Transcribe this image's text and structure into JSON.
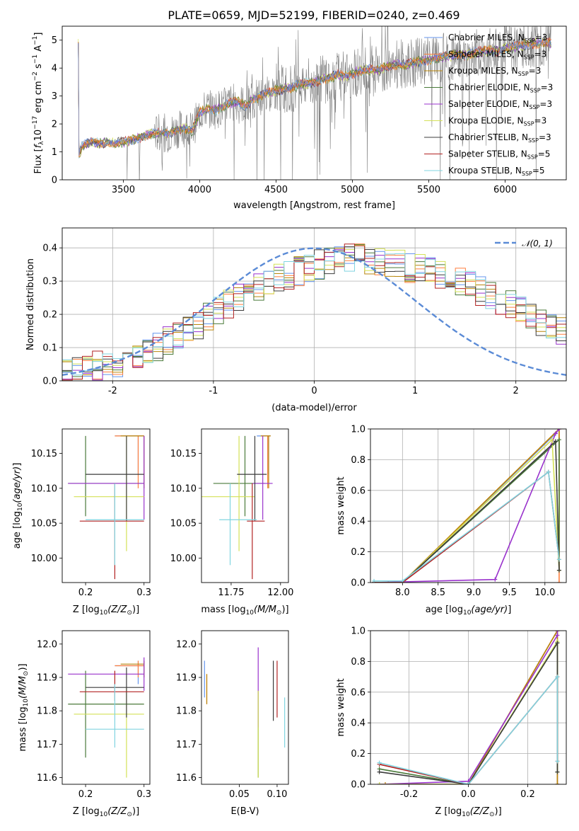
{
  "title": "PLATE=0659, MJD=52199, FIBERID=0240, z=0.469",
  "colors": {
    "chabrier_miles": "#6495ed",
    "salpeter_miles": "#ff7f3f",
    "kroupa_miles": "#b8860b",
    "chabrier_elodie": "#4a7a3a",
    "salpeter_elodie": "#9932cc",
    "kroupa_elodie": "#d4e157",
    "chabrier_stelib": "#3c3c3c",
    "salpeter_stelib": "#b22222",
    "kroupa_stelib": "#80d4e0",
    "data_grey": "#808080",
    "gauss": "#5b8bd6",
    "grid": "#b0b0b0"
  },
  "chart_data": [
    {
      "id": "spectrum",
      "type": "line",
      "title": "PLATE=0659, MJD=52199, FIBERID=0240, z=0.469",
      "xlabel": "wavelength [Angstrom, rest frame]",
      "ylabel_parts": [
        "Flux [",
        "f",
        "λ",
        "10",
        "−17",
        " erg cm",
        "−2",
        " s",
        "−1",
        " A",
        "−1",
        "]"
      ],
      "xlim": [
        3100,
        6400
      ],
      "ylim": [
        0,
        5.5
      ],
      "xticks": [
        3500,
        4000,
        4500,
        5000,
        5500,
        6000
      ],
      "yticks": [
        0,
        1,
        2,
        3,
        4,
        5
      ],
      "grid": false,
      "legend_position": "right",
      "legend": [
        {
          "label": "Chabrier MILES, N",
          "sub": "SSP",
          "suffix": "=3",
          "color_key": "chabrier_miles"
        },
        {
          "label": "Salpeter MILES, N",
          "sub": "SSP",
          "suffix": "=3",
          "color_key": "salpeter_miles"
        },
        {
          "label": "Kroupa MILES, N",
          "sub": "SSP",
          "suffix": "=3",
          "color_key": "kroupa_miles"
        },
        {
          "label": "Chabrier ELODIE, N",
          "sub": "SSP",
          "suffix": "=3",
          "color_key": "chabrier_elodie"
        },
        {
          "label": "Salpeter ELODIE, N",
          "sub": "SSP",
          "suffix": "=3",
          "color_key": "salpeter_elodie"
        },
        {
          "label": "Kroupa ELODIE, N",
          "sub": "SSP",
          "suffix": "=3",
          "color_key": "kroupa_elodie"
        },
        {
          "label": "Chabrier STELIB, N",
          "sub": "SSP",
          "suffix": "=3",
          "color_key": "chabrier_stelib"
        },
        {
          "label": "Salpeter STELIB, N",
          "sub": "SSP",
          "suffix": "=5",
          "color_key": "salpeter_stelib"
        },
        {
          "label": "Kroupa STELIB, N",
          "sub": "SSP",
          "suffix": "=5",
          "color_key": "kroupa_stelib"
        }
      ],
      "model_continuum": {
        "x": [
          3210,
          3230,
          3260,
          3300,
          3350,
          3400,
          3450,
          3500,
          3550,
          3600,
          3650,
          3700,
          3750,
          3800,
          3850,
          3900,
          3950,
          4000,
          4050,
          4100,
          4150,
          4200,
          4250,
          4300,
          4350,
          4400,
          4450,
          4500,
          4550,
          4600,
          4650,
          4700,
          4750,
          4800,
          4850,
          4900,
          4950,
          5000,
          5050,
          5100,
          5150,
          5200,
          5250,
          5300,
          5350,
          5400,
          5450,
          5500,
          5550,
          5600,
          5650,
          5700,
          5750,
          5800,
          5850,
          5900,
          5950,
          6000,
          6050,
          6100,
          6150,
          6200
        ],
        "y": [
          0.9,
          1.2,
          1.3,
          1.35,
          1.3,
          1.35,
          1.3,
          1.35,
          1.4,
          1.5,
          1.6,
          1.65,
          1.7,
          1.65,
          1.8,
          1.85,
          1.75,
          2.4,
          2.55,
          2.5,
          2.6,
          2.75,
          2.8,
          2.65,
          2.9,
          3.0,
          3.1,
          3.2,
          3.25,
          3.3,
          3.4,
          3.45,
          3.5,
          3.6,
          3.65,
          3.75,
          3.7,
          3.8,
          3.9,
          3.95,
          3.9,
          4.0,
          4.1,
          4.15,
          4.1,
          4.2,
          4.25,
          4.3,
          4.35,
          4.4,
          4.45,
          4.5,
          4.45,
          4.55,
          4.6,
          4.65,
          4.6,
          4.7,
          4.75,
          4.8,
          4.85,
          4.9
        ]
      }
    },
    {
      "id": "residuals",
      "type": "histogram",
      "xlabel": "(data-model)/error",
      "ylabel": "Normed distribution",
      "xlim": [
        -2.5,
        2.5
      ],
      "ylim": [
        0,
        0.46
      ],
      "xticks": [
        -2,
        -1,
        0,
        1,
        2
      ],
      "yticks": [
        0.0,
        0.1,
        0.2,
        0.3,
        0.4
      ],
      "grid": true,
      "legend_label": "𝒩(0, 1)",
      "legend_position": "top-right",
      "bin_edges_start": -2.5,
      "bin_width": 0.1,
      "base_values": [
        0.03,
        0.035,
        0.04,
        0.045,
        0.05,
        0.055,
        0.06,
        0.07,
        0.09,
        0.1,
        0.12,
        0.13,
        0.15,
        0.17,
        0.19,
        0.21,
        0.23,
        0.25,
        0.27,
        0.28,
        0.3,
        0.31,
        0.32,
        0.33,
        0.34,
        0.35,
        0.36,
        0.36,
        0.37,
        0.37,
        0.36,
        0.36,
        0.35,
        0.35,
        0.34,
        0.34,
        0.33,
        0.32,
        0.31,
        0.3,
        0.29,
        0.27,
        0.26,
        0.24,
        0.23,
        0.21,
        0.2,
        0.18,
        0.17,
        0.15
      ]
    },
    {
      "id": "age_vs_Z",
      "type": "errorbar",
      "xlabel_main": "Z [log",
      "xlabel_sub": "10",
      "xlabel_rest": "(Z/Z",
      "xlabel_end": ")]",
      "ylabel": "age  [log",
      "xlim": [
        0.16,
        0.31
      ],
      "ylim": [
        9.965,
        10.185
      ],
      "xticks": [
        0.2,
        0.3
      ],
      "yticks": [
        10.0,
        10.05,
        10.1,
        10.15
      ]
    },
    {
      "id": "age_vs_mass",
      "type": "errorbar",
      "xlim": [
        11.6,
        12.04
      ],
      "ylim": [
        9.965,
        10.185
      ],
      "xticks": [
        11.75,
        12.0
      ],
      "yticks": [
        10.0,
        10.05,
        10.1,
        10.15
      ]
    },
    {
      "id": "weight_vs_age",
      "type": "line",
      "ylabel": "mass weight",
      "xlim": [
        7.55,
        10.3
      ],
      "ylim": [
        0,
        1
      ],
      "xticks": [
        8.0,
        8.5,
        9.0,
        9.5,
        10.0
      ],
      "yticks": [
        0.0,
        0.2,
        0.4,
        0.6,
        0.8,
        1.0
      ],
      "grid": true
    },
    {
      "id": "mass_vs_Z",
      "type": "errorbar",
      "xlim": [
        0.16,
        0.31
      ],
      "ylim": [
        11.58,
        12.04
      ],
      "xticks": [
        0.2,
        0.3
      ],
      "yticks": [
        11.6,
        11.7,
        11.8,
        11.9,
        12.0
      ]
    },
    {
      "id": "mass_vs_ebv",
      "type": "errorbar",
      "xlabel": "E(B-V)",
      "xlim": [
        0.0,
        0.115
      ],
      "ylim": [
        11.58,
        12.04
      ],
      "xticks": [
        0.05,
        0.1
      ],
      "yticks": [
        11.6,
        11.7,
        11.8,
        11.9,
        12.0
      ]
    },
    {
      "id": "weight_vs_Z",
      "type": "line",
      "ylabel": "mass weight",
      "xlim": [
        -0.33,
        0.33
      ],
      "ylim": [
        0,
        1
      ],
      "xticks": [
        -0.2,
        0.0,
        0.2
      ],
      "yticks": [
        0.0,
        0.2,
        0.4,
        0.6,
        0.8,
        1.0
      ],
      "grid": true
    }
  ],
  "models": [
    {
      "color_key": "chabrier_miles",
      "Z": 0.29,
      "Zerr": [
        0.25,
        0.3
      ],
      "age": 10.175,
      "ageerr": [
        10.12,
        10.175
      ],
      "mass": 11.935,
      "masserr": [
        11.88,
        11.95
      ],
      "ebv": 0.004,
      "ebverr": [
        11.84,
        11.95
      ],
      "wa_x": [
        7.6,
        8.0,
        10.15,
        10.2
      ],
      "wa_y": [
        0.0,
        0.0,
        0.97,
        1.0
      ],
      "wz_x": [
        -0.3,
        0.0,
        0.3,
        0.3
      ],
      "wz_y": [
        0.0,
        0.0,
        1.0,
        0.0
      ]
    },
    {
      "color_key": "salpeter_miles",
      "Z": 0.29,
      "Zerr": [
        0.25,
        0.3
      ],
      "age": 10.175,
      "ageerr": [
        10.1,
        10.175
      ],
      "mass": 11.935,
      "masserr": [
        11.9,
        11.95
      ],
      "ebv": 0.007,
      "ebverr": [
        11.82,
        11.91
      ],
      "wa_x": [
        7.8,
        8.0,
        10.2,
        10.2
      ],
      "wa_y": [
        0.0,
        0.0,
        1.0,
        0.0
      ],
      "wz_x": [
        -0.28,
        0.0,
        0.3,
        0.3
      ],
      "wz_y": [
        0.0,
        0.0,
        1.0,
        0.0
      ]
    },
    {
      "color_key": "kroupa_miles",
      "Z": 0.3,
      "Zerr": [
        0.26,
        0.3
      ],
      "age": 10.175,
      "ageerr": [
        10.1,
        10.175
      ],
      "mass": 11.94,
      "masserr": [
        11.9,
        11.95
      ],
      "ebv": 0.007,
      "ebverr": [
        11.82,
        11.91
      ],
      "wa_x": [
        7.8,
        8.0,
        10.2,
        10.2
      ],
      "wa_y": [
        0.0,
        0.0,
        1.0,
        0.08
      ],
      "wz_x": [
        -0.28,
        0.0,
        0.3,
        0.3
      ],
      "wz_y": [
        0.0,
        0.0,
        1.0,
        0.0
      ]
    },
    {
      "color_key": "chabrier_elodie",
      "Z": 0.2,
      "Zerr": [
        0.17,
        0.3
      ],
      "age": 10.107,
      "ageerr": [
        10.06,
        10.175
      ],
      "mass": 11.82,
      "masserr": [
        11.66,
        11.92
      ],
      "ebv": 0.075,
      "ebverr": [
        11.6,
        11.86
      ],
      "wa_x": [
        7.6,
        8.0,
        10.2,
        10.2
      ],
      "wa_y": [
        0.0,
        0.0,
        0.93,
        0.08
      ],
      "wz_x": [
        -0.3,
        0.0,
        0.3,
        0.3
      ],
      "wz_y": [
        0.1,
        0.0,
        0.92,
        0.08
      ]
    },
    {
      "color_key": "salpeter_elodie",
      "Z": 0.3,
      "Zerr": [
        0.17,
        0.3
      ],
      "age": 10.107,
      "ageerr": [
        10.055,
        10.175
      ],
      "mass": 11.91,
      "masserr": [
        11.86,
        11.96
      ],
      "ebv": 0.075,
      "ebverr": [
        11.75,
        11.99
      ],
      "wa_x": [
        7.6,
        9.3,
        10.15,
        10.2
      ],
      "wa_y": [
        0.0,
        0.02,
        0.97,
        1.0
      ],
      "wz_x": [
        -0.3,
        0.0,
        0.3,
        0.3
      ],
      "wz_y": [
        0.0,
        0.02,
        0.97,
        1.0
      ]
    },
    {
      "color_key": "kroupa_elodie",
      "Z": 0.27,
      "Zerr": [
        0.18,
        0.3
      ],
      "age": 10.088,
      "ageerr": [
        10.01,
        10.175
      ],
      "mass": 11.79,
      "masserr": [
        11.6,
        11.87
      ],
      "ebv": 0.075,
      "ebverr": [
        11.6,
        11.86
      ],
      "wa_x": [
        7.6,
        8.0,
        10.1,
        10.2
      ],
      "wa_y": [
        0.0,
        0.0,
        0.93,
        0.08
      ],
      "wz_x": [
        -0.3,
        0.0,
        0.3,
        0.3
      ],
      "wz_y": [
        0.0,
        0.0,
        0.93,
        0.08
      ]
    },
    {
      "color_key": "chabrier_stelib",
      "Z": 0.27,
      "Zerr": [
        0.2,
        0.3
      ],
      "age": 10.12,
      "ageerr": [
        10.053,
        10.175
      ],
      "mass": 11.87,
      "masserr": [
        11.78,
        11.93
      ],
      "ebv": 0.095,
      "ebverr": [
        11.77,
        11.95
      ],
      "wa_x": [
        7.6,
        8.0,
        10.15,
        10.2
      ],
      "wa_y": [
        0.0,
        0.0,
        0.92,
        0.08
      ],
      "wz_x": [
        -0.3,
        0.0,
        0.3,
        0.3
      ],
      "wz_y": [
        0.08,
        0.0,
        0.92,
        0.08
      ]
    },
    {
      "color_key": "salpeter_stelib",
      "Z": 0.25,
      "Zerr": [
        0.19,
        0.3
      ],
      "age": 10.053,
      "ageerr": [
        9.97,
        10.107
      ],
      "mass": 11.857,
      "masserr": [
        11.83,
        11.92
      ],
      "ebv": 0.1,
      "ebverr": [
        11.78,
        11.95
      ],
      "wa_x": [
        7.6,
        8.0,
        10.05,
        10.2
      ],
      "wa_y": [
        0.0,
        0.0,
        0.72,
        0.15
      ],
      "wz_x": [
        -0.3,
        0.0,
        0.3,
        0.3
      ],
      "wz_y": [
        0.13,
        0.0,
        0.7,
        0.15
      ]
    },
    {
      "color_key": "kroupa_stelib",
      "Z": 0.25,
      "Zerr": [
        0.2,
        0.3
      ],
      "age": 10.055,
      "ageerr": [
        9.99,
        10.107
      ],
      "mass": 11.745,
      "masserr": [
        11.69,
        11.88
      ],
      "ebv": 0.11,
      "ebverr": [
        11.69,
        11.84
      ],
      "wa_x": [
        7.6,
        8.0,
        10.05,
        10.2
      ],
      "wa_y": [
        0.01,
        0.01,
        0.72,
        0.15
      ],
      "wz_x": [
        -0.3,
        0.0,
        0.3,
        0.3
      ],
      "wz_y": [
        0.14,
        0.0,
        0.7,
        0.15
      ]
    }
  ]
}
